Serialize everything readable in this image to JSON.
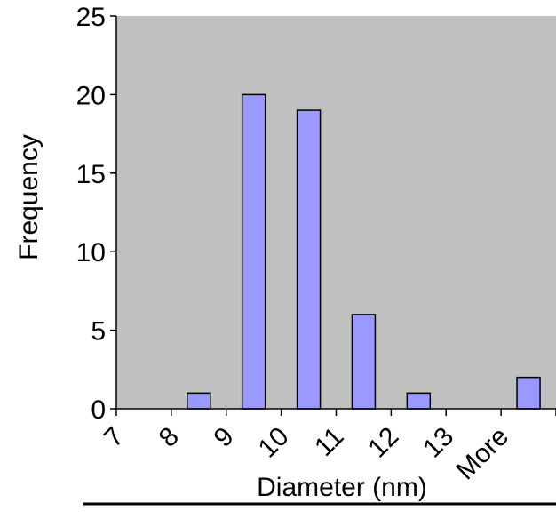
{
  "chart_data": {
    "type": "bar",
    "title": "",
    "xlabel": "Diameter (nm)",
    "ylabel": "Frequency",
    "categories": [
      "7",
      "8",
      "9",
      "10",
      "11",
      "12",
      "13",
      "More"
    ],
    "values": [
      0,
      1,
      20,
      19,
      6,
      1,
      0,
      2
    ],
    "ylim": [
      0,
      25
    ],
    "yticks": [
      "0",
      "5",
      "10",
      "15",
      "20",
      "25"
    ],
    "grid": false,
    "legend": "none",
    "colors": {
      "plot_background": "#c0c0c0",
      "bar_fill": "#9999ff",
      "bar_stroke": "#000000",
      "axis": "#000000"
    }
  }
}
